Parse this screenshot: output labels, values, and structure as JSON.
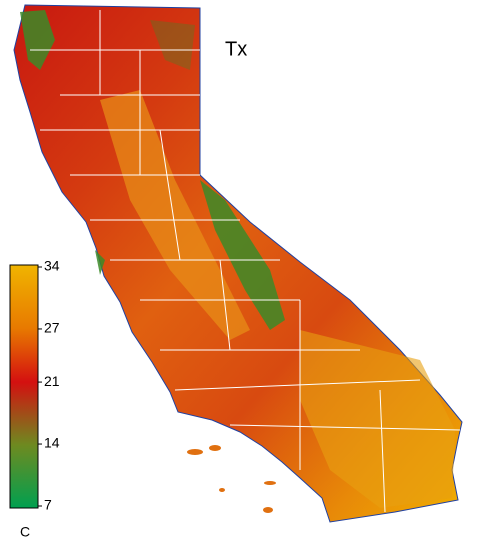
{
  "title": "Tx",
  "colorbar": {
    "range": [
      7,
      34
    ],
    "ticks": [
      34,
      27,
      21,
      14,
      7
    ],
    "colors": [
      "#f0b400",
      "#e87a00",
      "#d41010",
      "#6e8a20",
      "#00a050"
    ],
    "unit": "C"
  }
}
